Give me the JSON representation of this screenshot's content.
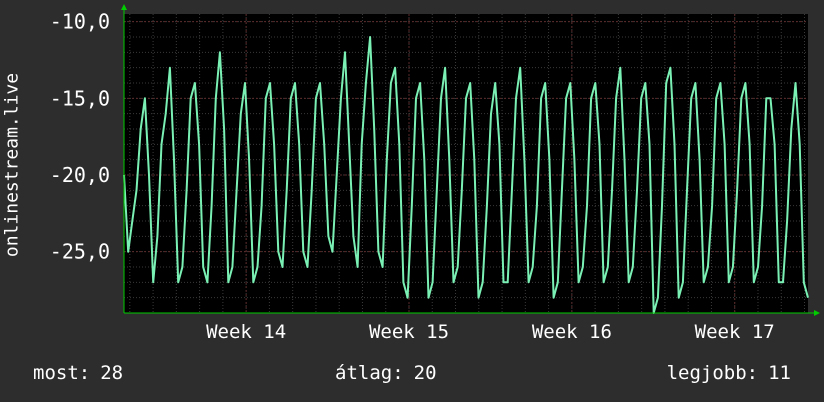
{
  "chart_data": {
    "type": "line",
    "ylabel": "onlinestream.live",
    "ylim": [
      -29,
      -9.5
    ],
    "y_ticks": [
      {
        "value": -10,
        "label": "-10,0"
      },
      {
        "value": -15,
        "label": "-15,0"
      },
      {
        "value": -20,
        "label": "-20,0"
      },
      {
        "value": -25,
        "label": "-25,0"
      }
    ],
    "x_ticks": [
      {
        "position": 1,
        "label": "Week 14"
      },
      {
        "position": 2,
        "label": "Week 15"
      },
      {
        "position": 3,
        "label": "Week 16"
      },
      {
        "position": 4,
        "label": "Week 17"
      }
    ],
    "xlim": [
      0.25,
      4.45
    ],
    "grid": true,
    "line_color": "#7af0b4",
    "grid_color": "#5a2a2a",
    "axis_color": "#00cc00",
    "series": [
      {
        "values": [
          -20,
          -25,
          -23,
          -21,
          -17,
          -15,
          -20,
          -27,
          -24,
          -18,
          -16,
          -13,
          -19,
          -27,
          -26,
          -21,
          -15,
          -14,
          -18,
          -26,
          -27,
          -22,
          -15,
          -12,
          -17,
          -27,
          -26,
          -21,
          -16,
          -14,
          -19,
          -27,
          -26,
          -22,
          -15,
          -14,
          -18,
          -25,
          -26,
          -21,
          -15,
          -14,
          -18,
          -25,
          -26,
          -21,
          -15,
          -14,
          -18,
          -24,
          -25,
          -20,
          -15,
          -12,
          -18,
          -24,
          -26,
          -18,
          -14,
          -11,
          -17,
          -25,
          -26,
          -19,
          -14,
          -13,
          -18,
          -27,
          -28,
          -22,
          -15,
          -14,
          -19,
          -28,
          -27,
          -21,
          -15,
          -13,
          -19,
          -27,
          -26,
          -21,
          -15,
          -14,
          -19,
          -28,
          -27,
          -22,
          -16,
          -14,
          -18,
          -27,
          -27,
          -21,
          -15,
          -13,
          -19,
          -27,
          -26,
          -22,
          -15,
          -14,
          -19,
          -28,
          -27,
          -21,
          -15,
          -14,
          -19,
          -27,
          -26,
          -22,
          -15,
          -14,
          -18,
          -27,
          -26,
          -21,
          -15,
          -13,
          -19,
          -27,
          -26,
          -21,
          -15,
          -14,
          -18,
          -29,
          -28,
          -22,
          -14,
          -13,
          -18,
          -28,
          -27,
          -21,
          -15,
          -14,
          -19,
          -27,
          -26,
          -22,
          -15,
          -14,
          -18,
          -27,
          -26,
          -21,
          -15,
          -14,
          -18,
          -27,
          -26,
          -22,
          -15,
          -15,
          -18,
          -27,
          -27,
          -23,
          -17,
          -14,
          -18,
          -27,
          -28
        ]
      }
    ]
  },
  "stats": {
    "now_label": "most:",
    "now_value": "28",
    "avg_label": "átlag:",
    "avg_value": "20",
    "max_label": "legjobb:",
    "max_value": "11"
  }
}
